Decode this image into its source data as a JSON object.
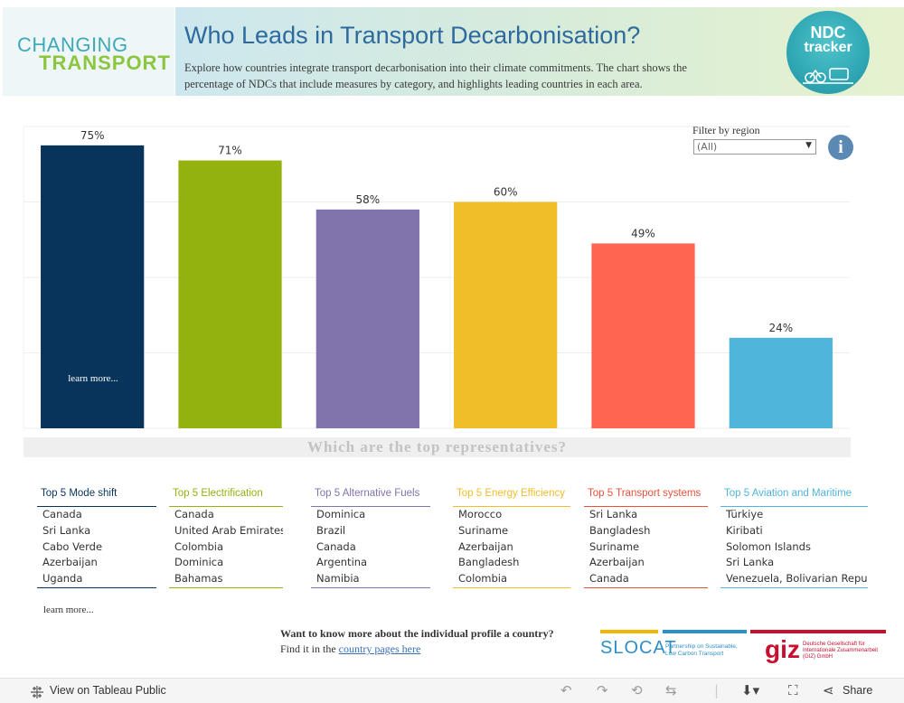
{
  "header": {
    "logo_line1": "CHANGING",
    "logo_line2": "TRANSPORT",
    "title": "Who Leads in Transport Decarbonisation?",
    "subtitle": "Explore how countries integrate transport decarbonisation into their climate commitments. The chart shows the percentage of NDCs that include measures by category, and highlights leading countries in each area.",
    "badge_line1": "NDC",
    "badge_line2": "tracker"
  },
  "filter": {
    "label": "Filter by region",
    "value": "(All)"
  },
  "chart_data": {
    "type": "bar",
    "categories": [
      "Mode shift",
      "Electrification",
      "Alternative Fuels",
      "Energy Efficiency",
      "Transport systems",
      "Aviation and Maritime"
    ],
    "values": [
      75,
      71,
      58,
      60,
      49,
      24
    ],
    "value_labels": [
      "75%",
      "71%",
      "58%",
      "60%",
      "49%",
      "24%"
    ],
    "colors": [
      "#08335a",
      "#93b20e",
      "#8173ac",
      "#efbe28",
      "#ff6550",
      "#4fb5da"
    ],
    "ylim": [
      0,
      80
    ],
    "grid": true,
    "xlabel": "",
    "ylabel": "",
    "bar_link_label": "learn more..."
  },
  "section_heading": "Which are the top representatives?",
  "top_lists": [
    {
      "header": "Top 5 Mode shift",
      "color": "#08335a",
      "items": [
        "Canada",
        "Sri Lanka",
        "Cabo Verde",
        "Azerbaijan",
        "Uganda"
      ]
    },
    {
      "header": "Top 5 Electrification",
      "color": "#93b20e",
      "items": [
        "Canada",
        "United Arab Emirates",
        "Colombia",
        "Dominica",
        "Bahamas"
      ]
    },
    {
      "header": "Top 5 Alternative Fuels",
      "color": "#8173ac",
      "items": [
        "Dominica",
        "Brazil",
        "Canada",
        "Argentina",
        "Namibia"
      ]
    },
    {
      "header": "Top 5 Energy Efficiency",
      "color": "#efbe28",
      "items": [
        "Morocco",
        "Suriname",
        "Azerbaijan",
        "Bangladesh",
        "Colombia"
      ]
    },
    {
      "header": "Top 5 Transport systems",
      "color": "#e8513c",
      "items": [
        "Sri Lanka",
        "Bangladesh",
        "Suriname",
        "Azerbaijan",
        "Canada"
      ]
    },
    {
      "header": "Top 5 Aviation and Maritime",
      "color": "#4fb5da",
      "items": [
        "Türkiye",
        "Kiribati",
        "Solomon Islands",
        "Sri Lanka",
        "Venezuela, Bolivarian Republic"
      ]
    }
  ],
  "learn_more_label": "learn more...",
  "profile_prompt": {
    "question": "Want to know more about the individual profile a country?",
    "find_text": "Find it in the ",
    "link_text": "country pages here"
  },
  "partners": {
    "slocat_name": "SLOCAT",
    "slocat_sub": "Partnership on Sustainable, Low Carbon Transport",
    "giz_name": "giz",
    "giz_sub": "Deutsche Gesellschaft für Internationale Zusammenarbeit (GIZ) GmbH"
  },
  "footer": {
    "view_label": "View on Tableau Public",
    "share_label": "Share"
  }
}
